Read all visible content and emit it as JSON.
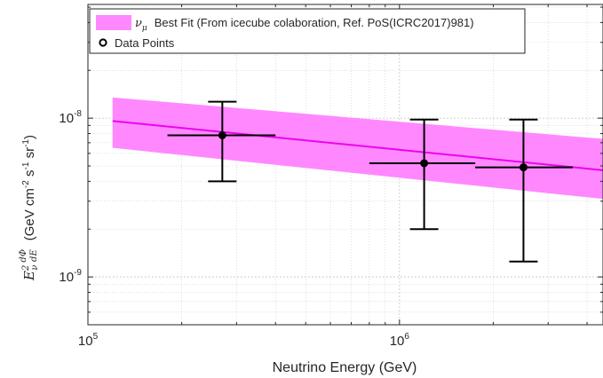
{
  "chart_data": {
    "type": "scatter",
    "xlabel": "Neutrino Energy (GeV)",
    "ylabel_prefix": "(GeV cm",
    "ylabel_mid1": " s",
    "ylabel_mid2": " sr",
    "ylabel_suffix": ")",
    "ylabel_exp": "-2",
    "ylabel_exp2": "-1",
    "ylabel_exp3": "-1",
    "x_scale": "log",
    "y_scale": "log",
    "xlim": [
      100000,
      4500000
    ],
    "ylim": [
      5e-10,
      5.2e-08
    ],
    "x_ticks": [
      {
        "value": 100000,
        "base": "10",
        "exp": "5"
      },
      {
        "value": 1000000,
        "base": "10",
        "exp": "6"
      }
    ],
    "y_ticks": [
      {
        "value": 1e-09,
        "base": "10",
        "exp": "-9"
      },
      {
        "value": 1e-08,
        "base": "10",
        "exp": "-8"
      }
    ],
    "grid": true,
    "legend_position": "top",
    "colors": {
      "band": "#ff88ff",
      "fit_line": "#ee00ee",
      "points": "#000000",
      "grid": "#cccccc"
    },
    "series": [
      {
        "name": "Best Fit (From icecube colaboration, Ref. PoS(ICRC2017)981)",
        "legend_symbol": "ν",
        "legend_subscript": "μ",
        "kind": "band_with_line",
        "x_start": 120000,
        "x_end": 4500000,
        "central": [
          9.6e-09,
          4.7e-09
        ],
        "band_upper": [
          1.35e-08,
          7.4e-09
        ],
        "band_lower": [
          6.5e-09,
          3.1e-09
        ]
      },
      {
        "name": "Data Points",
        "kind": "points",
        "points": [
          {
            "x": 270000,
            "y": 7.8e-09,
            "xerr": [
              180000,
              400000
            ],
            "yerr": [
              4e-09,
              1.27e-08
            ]
          },
          {
            "x": 1200000,
            "y": 5.2e-09,
            "xerr": [
              800000,
              1750000
            ],
            "yerr": [
              2e-09,
              9.8e-09
            ]
          },
          {
            "x": 2500000,
            "y": 4.9e-09,
            "xerr": [
              1750000,
              3600000
            ],
            "yerr": [
              1.25e-09,
              9.8e-09
            ]
          }
        ]
      }
    ]
  }
}
